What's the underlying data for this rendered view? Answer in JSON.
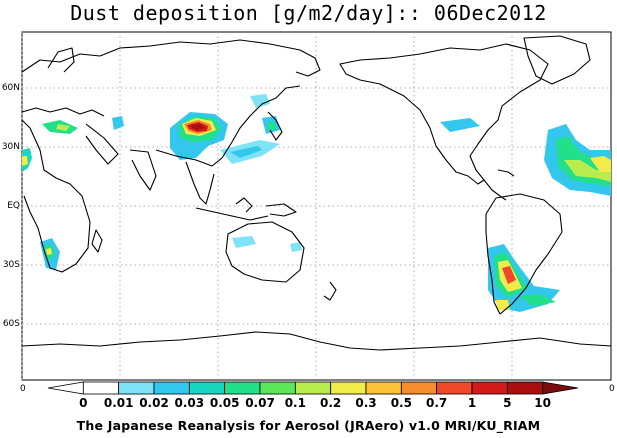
{
  "title": "Dust deposition [g/m2/day]:: 06Dec2012",
  "footer": "The Japanese Reanalysis for Aerosol (JRAero) v1.0 MRI/KU_RIAM",
  "latitude_labels": [
    "60N",
    "30N",
    "EQ",
    "30S",
    "60S"
  ],
  "corner_labels": [
    "0",
    "0"
  ],
  "colorbar": {
    "labels": [
      "0",
      "0.01",
      "0.02",
      "0.03",
      "0.05",
      "0.07",
      "0.1",
      "0.2",
      "0.3",
      "0.5",
      "0.7",
      "1",
      "5",
      "10"
    ],
    "colors": [
      "#ffffff",
      "#ffffff",
      "#7fe3f7",
      "#33c7ee",
      "#19d6c0",
      "#22e08a",
      "#5ce65a",
      "#b9ec4d",
      "#f1ec4a",
      "#fbc237",
      "#f58d2c",
      "#f0482a",
      "#d31b1b",
      "#a90f10",
      "#7a0e0e"
    ]
  }
}
